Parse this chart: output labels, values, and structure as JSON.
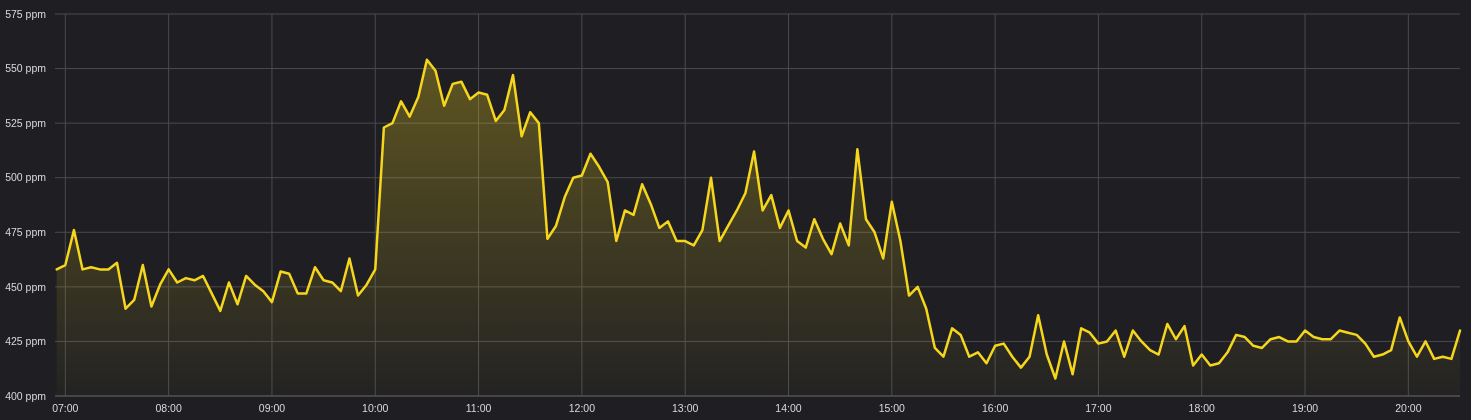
{
  "chart_data": {
    "type": "area",
    "xlim": [
      6.9,
      20.5
    ],
    "ylim": [
      400,
      575
    ],
    "xticks": [
      {
        "value": 7,
        "label": "07:00"
      },
      {
        "value": 8,
        "label": "08:00"
      },
      {
        "value": 9,
        "label": "09:00"
      },
      {
        "value": 10,
        "label": "10:00"
      },
      {
        "value": 11,
        "label": "11:00"
      },
      {
        "value": 12,
        "label": "12:00"
      },
      {
        "value": 13,
        "label": "13:00"
      },
      {
        "value": 14,
        "label": "14:00"
      },
      {
        "value": 15,
        "label": "15:00"
      },
      {
        "value": 16,
        "label": "16:00"
      },
      {
        "value": 17,
        "label": "17:00"
      },
      {
        "value": 18,
        "label": "18:00"
      },
      {
        "value": 19,
        "label": "19:00"
      },
      {
        "value": 20,
        "label": "20:00"
      }
    ],
    "yticks": [
      {
        "value": 400,
        "label": "400 ppm"
      },
      {
        "value": 425,
        "label": "425 ppm"
      },
      {
        "value": 450,
        "label": "450 ppm"
      },
      {
        "value": 475,
        "label": "475 ppm"
      },
      {
        "value": 500,
        "label": "500 ppm"
      },
      {
        "value": 525,
        "label": "525 ppm"
      },
      {
        "value": 550,
        "label": "550 ppm"
      },
      {
        "value": 575,
        "label": "575 ppm"
      }
    ],
    "grid": true,
    "x": [
      6.9167,
      7,
      7.0833,
      7.1667,
      7.25,
      7.3333,
      7.4167,
      7.5,
      7.5833,
      7.6667,
      7.75,
      7.8333,
      7.9167,
      8,
      8.0833,
      8.1667,
      8.25,
      8.3333,
      8.4167,
      8.5,
      8.5833,
      8.6667,
      8.75,
      8.8333,
      8.9167,
      9,
      9.0833,
      9.1667,
      9.25,
      9.3333,
      9.4167,
      9.5,
      9.5833,
      9.6667,
      9.75,
      9.8333,
      9.9167,
      10,
      10.0833,
      10.1667,
      10.25,
      10.3333,
      10.4167,
      10.5,
      10.5833,
      10.6667,
      10.75,
      10.8333,
      10.9167,
      11,
      11.0833,
      11.1667,
      11.25,
      11.3333,
      11.4167,
      11.5,
      11.5833,
      11.6667,
      11.75,
      11.8333,
      11.9167,
      12,
      12.0833,
      12.1667,
      12.25,
      12.3333,
      12.4167,
      12.5,
      12.5833,
      12.6667,
      12.75,
      12.8333,
      12.9167,
      13,
      13.0833,
      13.1667,
      13.25,
      13.3333,
      13.4167,
      13.5,
      13.5833,
      13.6667,
      13.75,
      13.8333,
      13.9167,
      14,
      14.0833,
      14.1667,
      14.25,
      14.3333,
      14.4167,
      14.5,
      14.5833,
      14.6667,
      14.75,
      14.8333,
      14.9167,
      15,
      15.0833,
      15.1667,
      15.25,
      15.3333,
      15.4167,
      15.5,
      15.5833,
      15.6667,
      15.75,
      15.8333,
      15.9167,
      16,
      16.0833,
      16.1667,
      16.25,
      16.3333,
      16.4167,
      16.5,
      16.5833,
      16.6667,
      16.75,
      16.8333,
      16.9167,
      17,
      17.0833,
      17.1667,
      17.25,
      17.3333,
      17.4167,
      17.5,
      17.5833,
      17.6667,
      17.75,
      17.8333,
      17.9167,
      18,
      18.0833,
      18.1667,
      18.25,
      18.3333,
      18.4167,
      18.5,
      18.5833,
      18.6667,
      18.75,
      18.8333,
      18.9167,
      19,
      19.0833,
      19.1667,
      19.25,
      19.3333,
      19.4167,
      19.5,
      19.5833,
      19.6667,
      19.75,
      19.8333,
      19.9167,
      20,
      20.0833,
      20.1667,
      20.25,
      20.3333,
      20.4167,
      20.5
    ],
    "series": [
      {
        "color": "#f5d61c",
        "values": [
          458,
          460,
          476,
          458,
          459,
          458,
          458,
          461,
          440,
          444,
          460,
          441,
          451,
          458,
          452,
          454,
          453,
          455,
          447,
          439,
          452,
          442,
          455,
          451,
          448,
          443,
          457,
          456,
          447,
          447,
          459,
          453,
          452,
          448,
          463,
          446,
          451,
          458,
          523,
          525,
          535,
          528,
          537,
          554,
          549,
          533,
          543,
          544,
          536,
          539,
          538,
          526,
          531,
          547,
          519,
          530,
          525,
          472,
          478,
          491,
          500,
          501,
          511,
          505,
          498,
          471,
          485,
          483,
          497,
          488,
          477,
          480,
          471,
          471,
          469,
          476,
          500,
          471,
          478,
          485,
          493,
          512,
          485,
          492,
          477,
          485,
          471,
          468,
          481,
          472,
          465,
          479,
          469,
          513,
          481,
          475,
          463,
          489,
          471,
          446,
          450,
          440,
          422,
          418,
          431,
          428,
          418,
          420,
          415,
          423,
          424,
          418,
          413,
          418,
          437,
          419,
          408,
          425,
          410,
          431,
          429,
          424,
          425,
          430,
          418,
          430,
          425,
          421,
          419,
          433,
          426,
          432,
          414,
          419,
          414,
          415,
          420,
          428,
          427,
          423,
          422,
          426,
          427,
          425,
          425,
          430,
          427,
          426,
          426,
          430,
          429,
          428,
          424,
          418,
          419,
          421,
          436,
          425,
          418,
          425,
          417,
          418,
          417,
          430
        ]
      }
    ]
  }
}
